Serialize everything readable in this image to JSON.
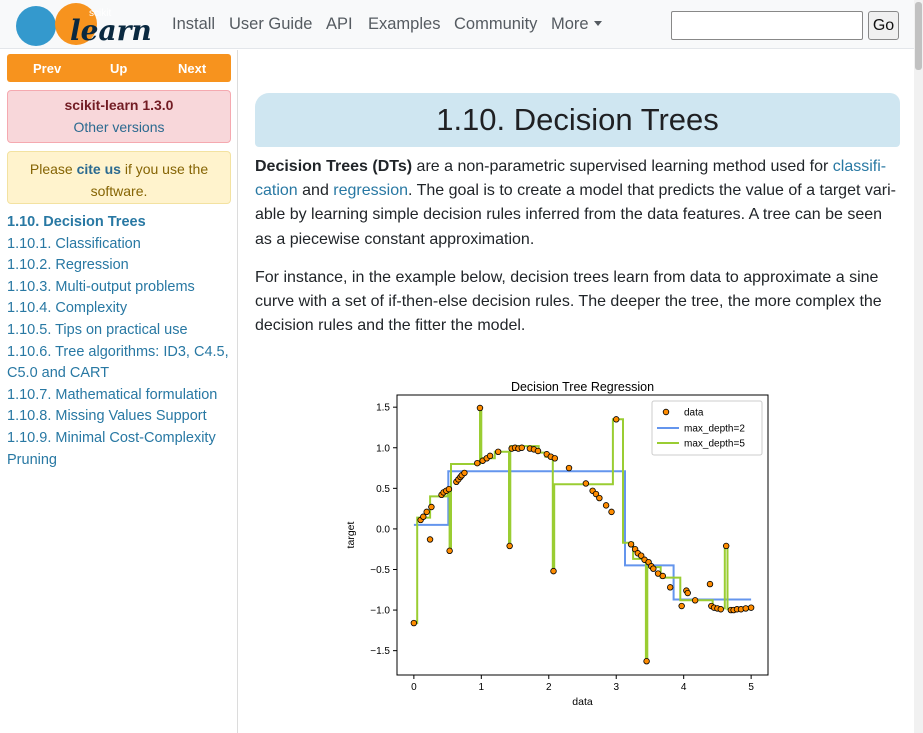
{
  "navbar": {
    "logo_small": "scikit",
    "logo_big": "learn",
    "links": [
      "Install",
      "User Guide",
      "API",
      "Examples",
      "Community",
      "More"
    ],
    "search_placeholder": "",
    "go_label": "Go"
  },
  "sidebar": {
    "prev": "Prev",
    "up": "Up",
    "next": "Next",
    "version_title": "scikit-learn 1.3.0",
    "version_link": "Other versions",
    "cite_pre": "Please ",
    "cite_link": "cite us",
    "cite_post": " if you use the software.",
    "toc": [
      "1.10. Decision Trees",
      "1.10.1. Classification",
      "1.10.2. Regression",
      "1.10.3. Multi-output problems",
      "1.10.4. Complexity",
      "1.10.5. Tips on practical use",
      "1.10.6. Tree algorithms: ID3, C4.5, C5.0 and CART",
      "1.10.7. Mathematical formulation",
      "1.10.8. Missing Values Support",
      "1.10.9. Minimal Cost-Complexity Pruning"
    ]
  },
  "main": {
    "title": "1.10. Decision Trees",
    "p1": {
      "bold": "Decision Trees (DTs)",
      "t1": " are a non-parametric supervised learning method used for ",
      "link1": "classifi-cation",
      "t2": " and ",
      "link2": "regression",
      "t3": ". The goal is to create a model that predicts the value of a target vari-able by learning simple decision rules inferred from the data features. A tree can be seen as a piecewise constant approximation."
    },
    "p2": "For instance, in the example below, decision trees learn from data to approximate a sine curve with a set of if-then-else decision rules. The deeper the tree, the more complex the decision rules and the fitter the model."
  },
  "colors": {
    "accent_orange": "#f7931e",
    "link_blue": "#2878a3",
    "title_bg": "#cfe6f1",
    "depth2": "#6495ed",
    "depth5": "#9acd32",
    "points": "#ff8c00"
  },
  "chart_data": {
    "type": "scatter",
    "title": "Decision Tree Regression",
    "xlabel": "data",
    "ylabel": "target",
    "xlim": [
      -0.25,
      5.25
    ],
    "ylim": [
      -1.8,
      1.65
    ],
    "xticks": [
      0,
      1,
      2,
      3,
      4,
      5
    ],
    "yticks": [
      -1.5,
      -1.0,
      -0.5,
      0.0,
      0.5,
      1.0,
      1.5
    ],
    "legend": [
      "data",
      "max_depth=2",
      "max_depth=5"
    ],
    "legend_position": "top-right",
    "points": [
      [
        0.0,
        -1.16
      ],
      [
        0.1,
        0.11
      ],
      [
        0.14,
        0.15
      ],
      [
        0.19,
        0.21
      ],
      [
        0.24,
        -0.13
      ],
      [
        0.26,
        0.27
      ],
      [
        0.41,
        0.42
      ],
      [
        0.44,
        0.45
      ],
      [
        0.48,
        0.47
      ],
      [
        0.52,
        0.49
      ],
      [
        0.53,
        -0.27
      ],
      [
        0.63,
        0.58
      ],
      [
        0.66,
        0.61
      ],
      [
        0.69,
        0.64
      ],
      [
        0.71,
        0.66
      ],
      [
        0.75,
        0.69
      ],
      [
        0.94,
        0.81
      ],
      [
        0.98,
        1.49
      ],
      [
        1.02,
        0.84
      ],
      [
        1.08,
        0.87
      ],
      [
        1.13,
        0.9
      ],
      [
        1.25,
        0.95
      ],
      [
        1.42,
        -0.21
      ],
      [
        1.45,
        0.99
      ],
      [
        1.5,
        1.0
      ],
      [
        1.55,
        0.99
      ],
      [
        1.6,
        1.0
      ],
      [
        1.72,
        0.99
      ],
      [
        1.78,
        0.98
      ],
      [
        1.84,
        0.96
      ],
      [
        1.97,
        0.92
      ],
      [
        2.03,
        0.89
      ],
      [
        2.07,
        -0.52
      ],
      [
        2.09,
        0.87
      ],
      [
        2.3,
        0.75
      ],
      [
        2.55,
        0.56
      ],
      [
        2.65,
        0.47
      ],
      [
        2.7,
        0.43
      ],
      [
        2.75,
        0.38
      ],
      [
        2.85,
        0.29
      ],
      [
        2.93,
        0.21
      ],
      [
        3.0,
        1.35
      ],
      [
        3.22,
        -0.19
      ],
      [
        3.28,
        -0.25
      ],
      [
        3.32,
        -0.3
      ],
      [
        3.37,
        -0.33
      ],
      [
        3.42,
        -0.38
      ],
      [
        3.45,
        -1.63
      ],
      [
        3.48,
        -0.41
      ],
      [
        3.52,
        -0.46
      ],
      [
        3.55,
        -0.49
      ],
      [
        3.62,
        -0.55
      ],
      [
        3.69,
        -0.58
      ],
      [
        3.8,
        -0.72
      ],
      [
        3.97,
        -0.95
      ],
      [
        4.04,
        -0.76
      ],
      [
        4.06,
        -0.79
      ],
      [
        4.17,
        -0.88
      ],
      [
        4.39,
        -0.68
      ],
      [
        4.41,
        -0.95
      ],
      [
        4.45,
        -0.97
      ],
      [
        4.5,
        -0.98
      ],
      [
        4.55,
        -0.99
      ],
      [
        4.63,
        -0.21
      ],
      [
        4.7,
        -1.0
      ],
      [
        4.74,
        -1.0
      ],
      [
        4.79,
        -0.99
      ],
      [
        4.85,
        -0.99
      ],
      [
        4.92,
        -0.98
      ],
      [
        5.0,
        -0.97
      ]
    ],
    "series": [
      {
        "name": "max_depth=2",
        "x": [
          0.0,
          0.51,
          0.51,
          3.13,
          3.13,
          3.85,
          3.85,
          5.0
        ],
        "y": [
          0.05,
          0.05,
          0.71,
          0.71,
          -0.45,
          -0.45,
          -0.87,
          -0.87
        ]
      },
      {
        "name": "max_depth=5",
        "x": [
          0.0,
          0.05,
          0.05,
          0.24,
          0.24,
          0.5,
          0.5,
          0.53,
          0.53,
          0.55,
          0.55,
          0.98,
          0.98,
          1.0,
          1.0,
          1.2,
          1.2,
          1.41,
          1.41,
          1.43,
          1.43,
          1.85,
          1.85,
          1.95,
          1.95,
          2.06,
          2.06,
          2.08,
          2.08,
          2.95,
          2.95,
          3.1,
          3.1,
          3.25,
          3.25,
          3.44,
          3.44,
          3.46,
          3.46,
          3.66,
          3.66,
          3.95,
          3.95,
          4.43,
          4.43,
          4.61,
          4.61,
          4.65,
          4.65,
          5.0
        ],
        "y": [
          -1.16,
          -1.16,
          0.14,
          0.14,
          0.4,
          0.4,
          0.5,
          0.5,
          -0.27,
          -0.27,
          0.8,
          0.8,
          1.49,
          1.49,
          0.87,
          0.87,
          0.95,
          0.95,
          -0.21,
          -0.21,
          1.02,
          1.02,
          0.94,
          0.94,
          0.89,
          0.89,
          -0.52,
          -0.52,
          0.55,
          0.55,
          1.35,
          1.35,
          -0.17,
          -0.17,
          -0.37,
          -0.37,
          -1.63,
          -1.63,
          -0.47,
          -0.47,
          -0.6,
          -0.6,
          -0.88,
          -0.88,
          -0.98,
          -0.98,
          -0.21,
          -0.21,
          -0.99,
          -0.99
        ]
      }
    ]
  }
}
